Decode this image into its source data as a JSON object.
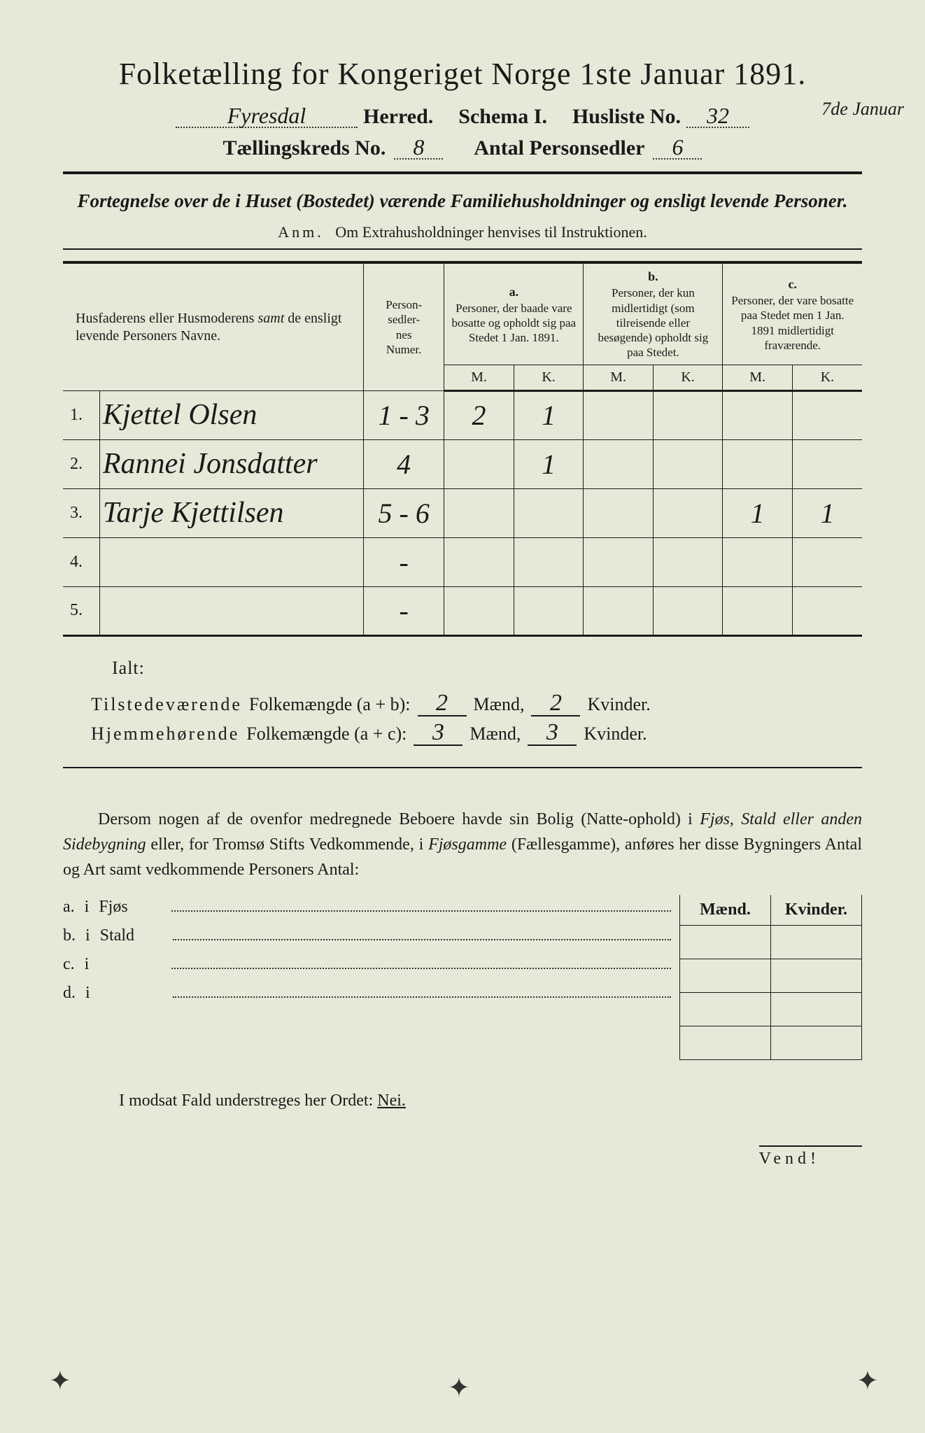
{
  "title": "Folketælling for Kongeriget Norge 1ste Januar 1891.",
  "header": {
    "herred_value": "Fyresdal",
    "herred_label": "Herred.",
    "schema_label": "Schema I.",
    "husliste_label": "Husliste No.",
    "husliste_value": "32",
    "margin_note": "7de Januar",
    "kreds_label": "Tællingskreds No.",
    "kreds_value": "8",
    "antal_label": "Antal Personsedler",
    "antal_value": "6"
  },
  "subtitle": "Fortegnelse over de i Huset (Bostedet) værende Familiehusholdninger og ensligt levende Personer.",
  "anm_label": "Anm.",
  "anm_text": "Om Extrahusholdninger henvises til Instruktionen.",
  "table": {
    "col_names": "Husfaderens eller Husmoderens samt de ensligt levende Personers Navne.",
    "col_numer": "Person-sedler-nes Numer.",
    "col_a_tag": "a.",
    "col_a": "Personer, der baade vare bosatte og opholdt sig paa Stedet 1 Jan. 1891.",
    "col_b_tag": "b.",
    "col_b": "Personer, der kun midlertidigt (som tilreisende eller besøgende) opholdt sig paa Stedet.",
    "col_c_tag": "c.",
    "col_c": "Personer, der vare bosatte paa Stedet men 1 Jan. 1891 midlertidigt fraværende.",
    "M": "M.",
    "K": "K.",
    "rows": [
      {
        "n": "1.",
        "name": "Kjettel Olsen",
        "num": "1 - 3",
        "aM": "2",
        "aK": "1",
        "bM": "",
        "bK": "",
        "cM": "",
        "cK": ""
      },
      {
        "n": "2.",
        "name": "Rannei Jonsdatter",
        "num": "4",
        "aM": "",
        "aK": "1",
        "bM": "",
        "bK": "",
        "cM": "",
        "cK": ""
      },
      {
        "n": "3.",
        "name": "Tarje Kjettilsen",
        "num": "5 - 6",
        "aM": "",
        "aK": "",
        "bM": "",
        "bK": "",
        "cM": "1",
        "cK": "1"
      },
      {
        "n": "4.",
        "name": "",
        "num": "-",
        "aM": "",
        "aK": "",
        "bM": "",
        "bK": "",
        "cM": "",
        "cK": ""
      },
      {
        "n": "5.",
        "name": "",
        "num": "-",
        "aM": "",
        "aK": "",
        "bM": "",
        "bK": "",
        "cM": "",
        "cK": ""
      }
    ]
  },
  "totals": {
    "ialt": "Ialt:",
    "line1_label": "Tilstedeværende",
    "line1_metric": "Folkemængde (a + b):",
    "line2_label": "Hjemmehørende",
    "line2_metric": "Folkemængde (a + c):",
    "maend": "Mænd,",
    "kvinder": "Kvinder.",
    "ab_m": "2",
    "ab_k": "2",
    "ac_m": "3",
    "ac_k": "3"
  },
  "para": "Dersom nogen af de ovenfor medregnede Beboere havde sin Bolig (Natte-ophold) i Fjøs, Stald eller anden Sidebygning eller, for Tromsø Stifts Vedkommende, i Fjøsgamme (Fællesgamme), anføres her disse Bygningers Antal og Art samt vedkommende Personers Antal:",
  "bottom": {
    "maend": "Mænd.",
    "kvinder": "Kvinder.",
    "rows": [
      {
        "tag": "a.",
        "i": "i",
        "label": "Fjøs"
      },
      {
        "tag": "b.",
        "i": "i",
        "label": "Stald"
      },
      {
        "tag": "c.",
        "i": "i",
        "label": ""
      },
      {
        "tag": "d.",
        "i": "i",
        "label": ""
      }
    ]
  },
  "nei_text": "I modsat Fald understreges her Ordet:",
  "nei_word": "Nei.",
  "vend": "Vend!"
}
